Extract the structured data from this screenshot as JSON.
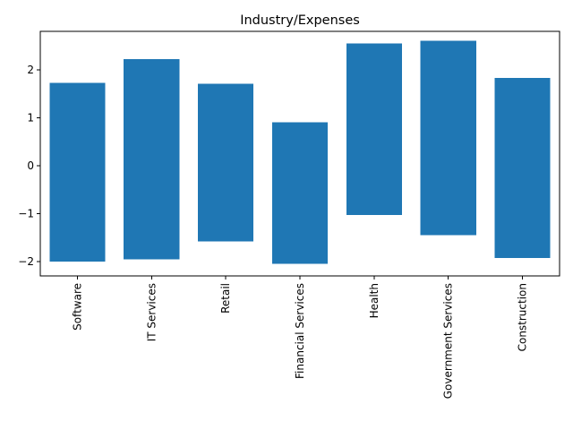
{
  "chart_data": {
    "type": "bar",
    "title": "Industry/Expenses",
    "xlabel": "",
    "ylabel": "",
    "categories": [
      "Software",
      "IT Services",
      "Retail",
      "Financial Services",
      "Health",
      "Government Services",
      "Construction"
    ],
    "series": [
      {
        "low": [
          -2.0,
          -1.95,
          -1.58,
          -2.05,
          -1.03,
          -1.45,
          -1.93
        ],
        "high": [
          1.73,
          2.22,
          1.71,
          0.9,
          2.55,
          2.6,
          1.83
        ]
      }
    ],
    "ylim": [
      -2.3,
      2.8
    ],
    "yticks": [
      -2,
      -1,
      0,
      1,
      2
    ],
    "ytick_labels": [
      "−2",
      "−1",
      "0",
      "1",
      "2"
    ],
    "grid": false,
    "colors": {
      "bar": "#1f77b4"
    }
  }
}
